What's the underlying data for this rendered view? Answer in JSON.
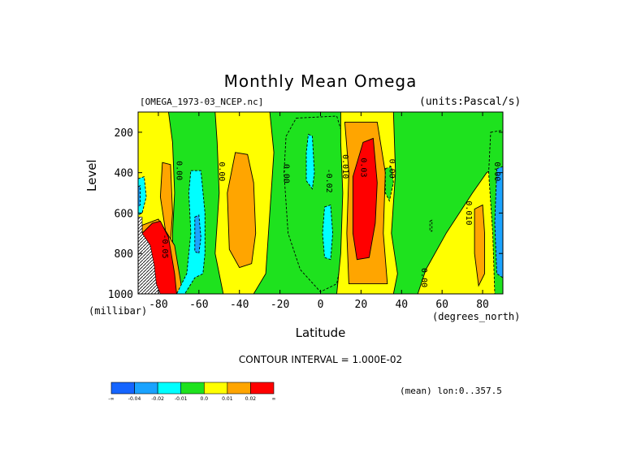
{
  "chart_data": {
    "type": "heatmap",
    "title": "Monthly Mean Omega",
    "file_label": "[OMEGA_1973-03_NCEP.nc]",
    "units_label": "(units:Pascal/s)",
    "ylabel": "Level",
    "yunit": "(millibar)",
    "xlabel": "Latitude",
    "xunit": "(degrees_north)",
    "contour_interval": "CONTOUR INTERVAL = 1.000E-02",
    "mean_label": "(mean) lon:0..357.5",
    "xlim": [
      -90,
      90
    ],
    "ylim": [
      1000,
      100
    ],
    "x_ticks": [
      -80,
      -60,
      -40,
      -20,
      0,
      20,
      40,
      60,
      80
    ],
    "x_tick_labels": [
      "-80",
      "-60",
      "-40",
      "-20",
      "0",
      "20",
      "40",
      "60",
      "80"
    ],
    "y_ticks": [
      200,
      400,
      600,
      800,
      1000
    ],
    "y_tick_labels": [
      "200",
      "400",
      "600",
      "800",
      "1000"
    ],
    "levels": [
      "-0.04",
      "-0.02",
      "-0.01",
      "0.0",
      "0.01",
      "0.02"
    ],
    "colorbar_labels": [
      "-∞",
      "-0.04",
      "-0.02",
      "-0.01",
      "0.0",
      "0.01",
      "0.02",
      "∞"
    ],
    "colors": [
      "#1565ff",
      "#1aa3ff",
      "#00ffff",
      "#1ee21e",
      "#ffff00",
      "#ffa500",
      "#ff0000"
    ],
    "background_color": "#1ee21e",
    "contour_labels": [
      {
        "text": "0.00",
        "lat": -71,
        "p": 390
      },
      {
        "text": "0.00",
        "lat": -50,
        "p": 395
      },
      {
        "text": "0.00",
        "lat": -18,
        "p": 405
      },
      {
        "text": "-0.02",
        "lat": 3,
        "p": 440
      },
      {
        "text": "0.010",
        "lat": 11,
        "p": 370
      },
      {
        "text": "0.03",
        "lat": 20,
        "p": 375
      },
      {
        "text": "0.00",
        "lat": 34,
        "p": 380
      },
      {
        "text": "0.010",
        "lat": 72,
        "p": 600
      },
      {
        "text": "0.00",
        "lat": 86,
        "p": 395
      },
      {
        "text": "0.00",
        "lat": 50,
        "p": 920
      },
      {
        "text": "-0.05",
        "lat": -78,
        "p": 765
      }
    ],
    "regions": [
      {
        "name": "sh-polar-yellow",
        "level": 4,
        "pts": [
          [
            -90,
            100
          ],
          [
            -75,
            100
          ],
          [
            -73,
            250
          ],
          [
            -72,
            500
          ],
          [
            -73,
            700
          ],
          [
            -73,
            1000
          ],
          [
            -90,
            1000
          ]
        ]
      },
      {
        "name": "sh-polar-blue",
        "level": 2,
        "pts": [
          [
            -90,
            430
          ],
          [
            -87,
            420
          ],
          [
            -86,
            520
          ],
          [
            -88,
            600
          ],
          [
            -90,
            610
          ]
        ]
      },
      {
        "name": "sh-polar-blue-inner",
        "level": 1,
        "pts": [
          [
            -90,
            470
          ],
          [
            -89,
            465
          ],
          [
            -89,
            560
          ],
          [
            -90,
            570
          ]
        ]
      },
      {
        "name": "sh-polar-orange",
        "level": 5,
        "pts": [
          [
            -78,
            350
          ],
          [
            -74,
            360
          ],
          [
            -73,
            600
          ],
          [
            -74,
            740
          ],
          [
            -76,
            720
          ],
          [
            -79,
            520
          ]
        ]
      },
      {
        "name": "sh-polar-orange-low",
        "level": 5,
        "pts": [
          [
            -88,
            660
          ],
          [
            -80,
            630
          ],
          [
            -72,
            760
          ],
          [
            -68,
            1000
          ],
          [
            -88,
            1000
          ]
        ]
      },
      {
        "name": "sh-polar-red",
        "level": 6,
        "pts": [
          [
            -88,
            700
          ],
          [
            -83,
            650
          ],
          [
            -79,
            640
          ],
          [
            -75,
            720
          ],
          [
            -72,
            900
          ],
          [
            -71,
            1000
          ],
          [
            -86,
            1000
          ]
        ]
      },
      {
        "name": "sh-60-cyan",
        "level": 2,
        "pts": [
          [
            -64,
            390
          ],
          [
            -59,
            390
          ],
          [
            -57,
            600
          ],
          [
            -57,
            800
          ],
          [
            -58,
            900
          ],
          [
            -62,
            920
          ],
          [
            -67,
            1000
          ],
          [
            -71,
            1000
          ],
          [
            -66,
            900
          ],
          [
            -64,
            700
          ],
          [
            -65,
            500
          ]
        ]
      },
      {
        "name": "sh-60-blue",
        "level": 1,
        "pts": [
          [
            -62,
            620
          ],
          [
            -60,
            610
          ],
          [
            -59,
            720
          ],
          [
            -60,
            800
          ],
          [
            -62,
            790
          ]
        ]
      },
      {
        "name": "sh-40-yellow",
        "level": 4,
        "pts": [
          [
            -52,
            100
          ],
          [
            -25,
            100
          ],
          [
            -23,
            300
          ],
          [
            -25,
            600
          ],
          [
            -27,
            900
          ],
          [
            -33,
            1000
          ],
          [
            -48,
            1000
          ],
          [
            -52,
            800
          ],
          [
            -50,
            500
          ],
          [
            -51,
            250
          ]
        ]
      },
      {
        "name": "sh-40-orange",
        "level": 5,
        "pts": [
          [
            -42,
            300
          ],
          [
            -36,
            310
          ],
          [
            -33,
            450
          ],
          [
            -32,
            700
          ],
          [
            -34,
            850
          ],
          [
            -40,
            870
          ],
          [
            -45,
            780
          ],
          [
            -46,
            500
          ]
        ]
      },
      {
        "name": "eq-cyan",
        "level": 3,
        "pts": [
          [
            -12,
            130
          ],
          [
            8,
            120
          ],
          [
            12,
            250
          ],
          [
            12,
            500
          ],
          [
            11,
            800
          ],
          [
            8,
            950
          ],
          [
            0,
            990
          ],
          [
            -10,
            880
          ],
          [
            -16,
            700
          ],
          [
            -18,
            400
          ],
          [
            -17,
            220
          ]
        ]
      },
      {
        "name": "eq-blue-1",
        "level": 2,
        "pts": [
          [
            -6,
            210
          ],
          [
            -4,
            220
          ],
          [
            -3,
            400
          ],
          [
            -4,
            480
          ],
          [
            -7,
            440
          ],
          [
            -7,
            300
          ]
        ]
      },
      {
        "name": "eq-blue-2",
        "level": 2,
        "pts": [
          [
            2,
            570
          ],
          [
            5,
            560
          ],
          [
            6,
            700
          ],
          [
            5,
            830
          ],
          [
            2,
            820
          ],
          [
            1,
            700
          ]
        ]
      },
      {
        "name": "nh-yellow",
        "level": 4,
        "pts": [
          [
            10,
            100
          ],
          [
            36,
            100
          ],
          [
            37,
            400
          ],
          [
            35,
            700
          ],
          [
            38,
            900
          ],
          [
            36,
            1000
          ],
          [
            8,
            1000
          ],
          [
            10,
            800
          ],
          [
            11,
            500
          ],
          [
            10,
            250
          ]
        ]
      },
      {
        "name": "nh-orange",
        "level": 5,
        "pts": [
          [
            12,
            150
          ],
          [
            28,
            150
          ],
          [
            32,
            400
          ],
          [
            31,
            700
          ],
          [
            33,
            950
          ],
          [
            14,
            950
          ],
          [
            13,
            700
          ],
          [
            14,
            400
          ]
        ]
      },
      {
        "name": "nh-red",
        "level": 6,
        "pts": [
          [
            16,
            420
          ],
          [
            21,
            250
          ],
          [
            26,
            230
          ],
          [
            28,
            450
          ],
          [
            27,
            650
          ],
          [
            24,
            820
          ],
          [
            18,
            830
          ],
          [
            16,
            700
          ]
        ]
      },
      {
        "name": "nh-35-cyan",
        "level": 3,
        "pts": [
          [
            32,
            380
          ],
          [
            35,
            370
          ],
          [
            36,
            450
          ],
          [
            34,
            540
          ],
          [
            32,
            500
          ]
        ]
      },
      {
        "name": "nh-55-yellow",
        "level": 4,
        "pts": [
          [
            62,
            700
          ],
          [
            75,
            500
          ],
          [
            82,
            400
          ],
          [
            90,
            350
          ],
          [
            90,
            1000
          ],
          [
            48,
            1000
          ],
          [
            52,
            880
          ]
        ]
      },
      {
        "name": "nh-75-orange",
        "level": 5,
        "pts": [
          [
            76,
            580
          ],
          [
            80,
            560
          ],
          [
            81,
            700
          ],
          [
            81,
            900
          ],
          [
            78,
            960
          ],
          [
            76,
            800
          ]
        ]
      },
      {
        "name": "nh-polar-cyan",
        "level": 3,
        "pts": [
          [
            84,
            200
          ],
          [
            90,
            190
          ],
          [
            90,
            1000
          ],
          [
            86,
            1000
          ],
          [
            85,
            700
          ],
          [
            83,
            400
          ]
        ]
      },
      {
        "name": "nh-polar-blue",
        "level": 1,
        "pts": [
          [
            87,
            380
          ],
          [
            90,
            370
          ],
          [
            90,
            920
          ],
          [
            87,
            900
          ],
          [
            86,
            650
          ]
        ]
      },
      {
        "name": "nh-60-small",
        "level": 3,
        "pts": [
          [
            54,
            640
          ],
          [
            55,
            635
          ],
          [
            55,
            690
          ],
          [
            54,
            690
          ]
        ]
      }
    ],
    "missing": [
      {
        "name": "antarctica",
        "pts": [
          [
            -90,
            620
          ],
          [
            -88,
            620
          ],
          [
            -88,
            700
          ],
          [
            -84,
            760
          ],
          [
            -82,
            860
          ],
          [
            -81,
            950
          ],
          [
            -79,
            1000
          ],
          [
            -90,
            1000
          ]
        ]
      }
    ]
  }
}
